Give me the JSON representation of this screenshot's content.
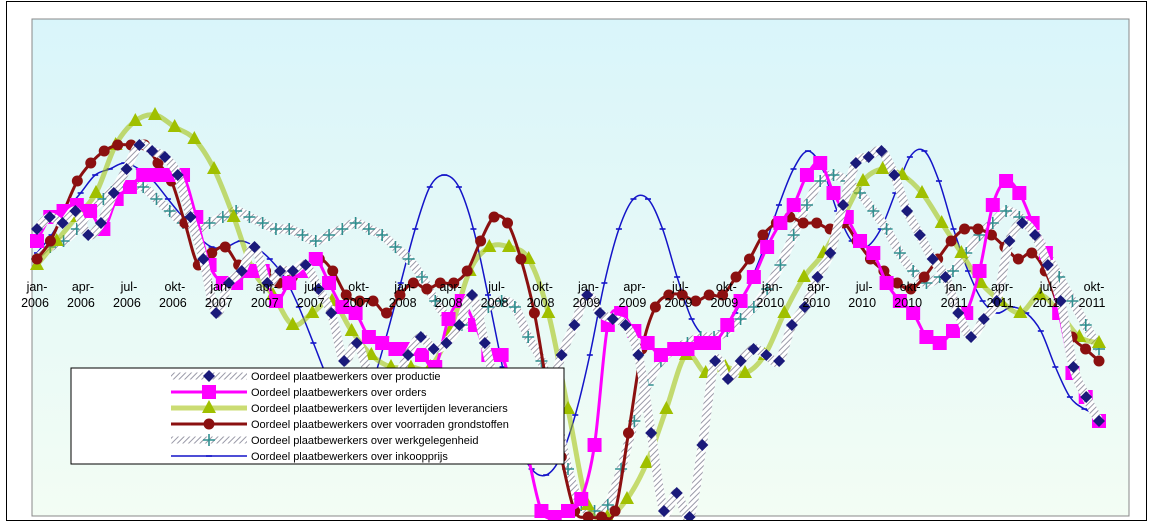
{
  "chart_data": {
    "type": "line",
    "title": "",
    "xlabel": "",
    "ylabel": "",
    "x_axis_labels": [
      [
        "jan-",
        "2006"
      ],
      [
        "apr-",
        "2006"
      ],
      [
        "jul-",
        "2006"
      ],
      [
        "okt-",
        "2006"
      ],
      [
        "jan-",
        "2007"
      ],
      [
        "apr-",
        "2007"
      ],
      [
        "jul-",
        "2007"
      ],
      [
        "okt-",
        "2007"
      ],
      [
        "jan-",
        "2008"
      ],
      [
        "apr-",
        "2008"
      ],
      [
        "jul-",
        "2008"
      ],
      [
        "okt-",
        "2008"
      ],
      [
        "jan-",
        "2009"
      ],
      [
        "apr-",
        "2009"
      ],
      [
        "jul-",
        "2009"
      ],
      [
        "okt-",
        "2009"
      ],
      [
        "jan-",
        "2010"
      ],
      [
        "apr-",
        "2010"
      ],
      [
        "jul-",
        "2010"
      ],
      [
        "okt-",
        "2010"
      ],
      [
        "jan-",
        "2011"
      ],
      [
        "apr-",
        "2011"
      ],
      [
        "jul-",
        "2011"
      ],
      [
        "okt-",
        "2011"
      ]
    ],
    "ylim": [
      -40,
      30
    ],
    "grid": false,
    "legend_position": "bottom-left",
    "plot_background": "#dff7fb",
    "series": [
      {
        "name": "Oordeel plaatbewerkers over productie",
        "color": "#1a1a7a",
        "marker": "diamond",
        "line_style": "hatched",
        "values": [
          10,
          12,
          11,
          13,
          9,
          11,
          16,
          20,
          24,
          23,
          22,
          19,
          12,
          5,
          -4,
          1,
          3,
          7,
          1,
          3,
          3,
          4,
          0,
          -4,
          -12,
          -9,
          -15,
          -20,
          -16,
          -11,
          -8,
          -10,
          -9,
          -6,
          -1,
          -9,
          -17,
          -19,
          -20,
          -22,
          -18,
          -11,
          -6,
          -1,
          -4,
          -5,
          -6,
          -11,
          -24,
          -37,
          -34,
          -38,
          -26,
          -12,
          -15,
          -12,
          -10,
          -11,
          -12,
          -6,
          -3,
          2,
          6,
          14,
          21,
          22,
          23,
          19,
          13,
          9,
          5,
          2,
          -4,
          -8,
          -5,
          -2,
          8,
          11,
          9,
          4,
          -2,
          -13,
          -18,
          -22
        ]
      },
      {
        "name": "Oordeel plaatbewerkers over orders",
        "color": "#ff00ff",
        "marker": "square",
        "line_style": "solid",
        "values": [
          8,
          12,
          13,
          14,
          13,
          10,
          15,
          17,
          19,
          19,
          19,
          19,
          12,
          4,
          1,
          1,
          3,
          3,
          -2,
          1,
          3,
          5,
          1,
          -3,
          -4,
          -8,
          -9,
          -10,
          -10,
          -11,
          -13,
          -5,
          -2,
          -6,
          -11,
          -11,
          -19,
          -28,
          -37,
          -38,
          -37,
          -35,
          -26,
          -6,
          -4,
          -7,
          -9,
          -11,
          -10,
          -10,
          -9,
          -9,
          -6,
          -2,
          2,
          7,
          11,
          14,
          19,
          21,
          16,
          12,
          8,
          6,
          1,
          -2,
          -4,
          -8,
          -9,
          -7,
          -4,
          3,
          14,
          18,
          16,
          11,
          6,
          -4,
          -14,
          -18,
          -22
        ]
      },
      {
        "name": "Oordeel plaatbewerkers over levertijden leveranciers",
        "color": "#a0c000",
        "marker": "triangle",
        "line_style": "thick",
        "values": [
          4,
          8,
          12,
          16,
          24,
          28,
          29,
          27,
          25,
          20,
          12,
          3,
          -1,
          -6,
          -4,
          -2,
          -7,
          -11,
          -13,
          -13,
          -13,
          -7,
          3,
          7,
          7,
          5,
          -4,
          -20,
          -36,
          -38,
          -35,
          -29,
          -20,
          -11,
          -14,
          -13,
          -14,
          -11,
          -4,
          2,
          6,
          12,
          18,
          20,
          19,
          16,
          11,
          6,
          1,
          -2,
          -4,
          -1,
          -4,
          -8,
          -9
        ]
      },
      {
        "name": "Oordeel plaatbewerkers over voorraden grondstoffen",
        "color": "#8b1010",
        "marker": "circle",
        "line_style": "solid",
        "values": [
          5,
          8,
          13,
          18,
          21,
          23,
          24,
          24,
          24,
          21,
          18,
          11,
          4,
          6,
          7,
          4,
          3,
          3,
          1,
          2,
          3,
          5,
          3,
          -1,
          -2,
          -2,
          -4,
          -1,
          1,
          0,
          1,
          1,
          3,
          8,
          12,
          11,
          5,
          -4,
          -17,
          -28,
          -37,
          -38,
          -38,
          -37,
          -24,
          -10,
          -3,
          -1,
          -1,
          -2,
          -1,
          -1,
          2,
          5,
          9,
          11,
          12,
          11,
          11,
          10,
          11,
          8,
          5,
          3,
          1,
          0,
          2,
          5,
          8,
          10,
          10,
          9,
          7,
          5,
          6,
          3,
          -3,
          -8,
          -10,
          -12
        ]
      },
      {
        "name": "Oordeel plaatbewerkers over werkgelegenheid",
        "color": "#2f8f8f",
        "marker": "plus",
        "line_style": "hatched",
        "values": [
          5,
          7,
          8,
          10,
          13,
          15,
          17,
          17,
          17,
          15,
          13,
          11,
          10,
          11,
          12,
          13,
          12,
          11,
          10,
          10,
          9,
          8,
          9,
          10,
          11,
          10,
          9,
          7,
          5,
          2,
          -2,
          -5,
          -6,
          -5,
          -3,
          -2,
          -3,
          -8,
          -12,
          -20,
          -30,
          -36,
          -37,
          -36,
          -30,
          -22,
          -16,
          -12,
          -10,
          -9,
          -8,
          -8,
          -7,
          -5,
          -3,
          0,
          4,
          9,
          14,
          18,
          19,
          18,
          16,
          13,
          10,
          6,
          3,
          1,
          2,
          3,
          6,
          9,
          11,
          13,
          12,
          10,
          6,
          2,
          -2,
          -6,
          -10
        ]
      },
      {
        "name": "Oordeel plaatbewerkers over inkoopprijs",
        "color": "#1414c8",
        "marker": "dash",
        "line_style": "solid",
        "values": [
          6,
          9,
          13,
          16,
          19,
          20,
          21,
          20,
          18,
          15,
          12,
          9,
          7,
          7,
          8,
          7,
          5,
          2,
          -3,
          -9,
          -15,
          -19,
          -20,
          -16,
          -8,
          1,
          10,
          17,
          19,
          17,
          10,
          -1,
          -13,
          -25,
          -30,
          -31,
          -28,
          -21,
          -11,
          1,
          10,
          15,
          15,
          10,
          2,
          -5,
          -8,
          -7,
          -4,
          1,
          7,
          14,
          20,
          23,
          20,
          13,
          8,
          7,
          10,
          16,
          22,
          23,
          18,
          10,
          3,
          -2,
          -4,
          -3,
          -4,
          -7,
          -13,
          -18,
          -20,
          -21
        ]
      }
    ]
  }
}
